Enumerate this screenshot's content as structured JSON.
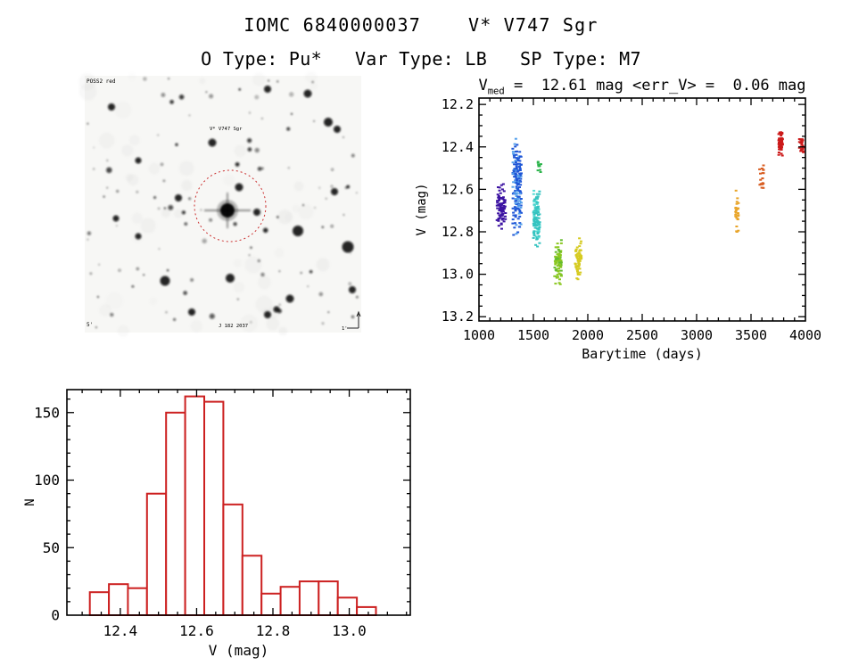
{
  "page": {
    "title": "IOMC 6840000037    V* V747 Sgr",
    "subtitle": "O Type: Pu*   Var Type: LB   SP Type: M7"
  },
  "finding_chart": {
    "label_top_left": "POSS2 red",
    "star_label": "V* V747 Sgr",
    "label_bottom_left": "5'",
    "label_bottom_center": "J 182 2037",
    "label_scale": "1'",
    "circle_color": "#cc3333",
    "star_label_color": "#b52222",
    "corner_text_color": "#2a2a55"
  },
  "chart_data": [
    {
      "type": "scatter",
      "name": "lightcurve",
      "title": {
        "var": "V",
        "sub": "med",
        "rest": " =  12.61 mag <err_V> =  0.06 mag"
      },
      "v_median_mag": 12.61,
      "err_v_mag": 0.06,
      "xlabel": "Barytime (days)",
      "ylabel": "V (mag)",
      "xlim": [
        1000,
        4000
      ],
      "ylim_top": 12.17,
      "ylim_bottom": 13.22,
      "xticks": [
        1000,
        1500,
        2000,
        2500,
        3000,
        3500,
        4000
      ],
      "xtick_labels": [
        "1000",
        "1500",
        "2000",
        "2500",
        "3000",
        "3500",
        "4000"
      ],
      "yticks": [
        12.2,
        12.4,
        12.6,
        12.8,
        13.0,
        13.2
      ],
      "ytick_labels": [
        "12.2",
        "12.4",
        "12.6",
        "12.8",
        "13.0",
        "13.2"
      ],
      "x_minor_step": 100,
      "y_minor_step": 0.05,
      "y_axis_inverted_brightness": true,
      "grid": false,
      "clusters": [
        {
          "name": "epoch-1",
          "x": [
            1165,
            1245
          ],
          "v": [
            12.55,
            12.81
          ],
          "n": 85,
          "color": "#3d14a2",
          "profile": "bell"
        },
        {
          "name": "epoch-2",
          "x": [
            1310,
            1390
          ],
          "v": [
            12.32,
            12.85
          ],
          "n": 175,
          "color": "#1f56d6",
          "color2": "#53a0ec",
          "color2_frac": 0.28,
          "profile": "bell"
        },
        {
          "name": "epoch-3",
          "x": [
            1500,
            1558
          ],
          "v": [
            12.55,
            12.91
          ],
          "n": 105,
          "color": "#35c3c0",
          "color2": "#56dcd4",
          "color2_frac": 0.25,
          "profile": "bell"
        },
        {
          "name": "epoch-3b",
          "x": [
            1540,
            1572
          ],
          "v": [
            12.47,
            12.52
          ],
          "n": 10,
          "color": "#2db44c",
          "profile": "uniform"
        },
        {
          "name": "epoch-4",
          "x": [
            1695,
            1760
          ],
          "v": [
            12.8,
            13.08
          ],
          "n": 80,
          "color": "#8cc822",
          "color2": "#63bb2e",
          "color2_frac": 0.25,
          "profile": "bell"
        },
        {
          "name": "epoch-5",
          "x": [
            1885,
            1940
          ],
          "v": [
            12.82,
            13.05
          ],
          "n": 65,
          "color": "#d6cb22",
          "profile": "bell"
        },
        {
          "name": "epoch-6",
          "x": [
            3358,
            3385
          ],
          "v": [
            12.6,
            12.8
          ],
          "n": 24,
          "color": "#e8a428",
          "profile": "uniform"
        },
        {
          "name": "epoch-7",
          "x": [
            3578,
            3615
          ],
          "v": [
            12.48,
            12.6
          ],
          "n": 20,
          "color": "#d85c20",
          "profile": "uniform"
        },
        {
          "name": "epoch-8",
          "x": [
            3755,
            3790
          ],
          "v": [
            12.31,
            12.46
          ],
          "n": 70,
          "color": "#cc1a1a",
          "profile": "bell"
        },
        {
          "name": "epoch-9",
          "x": [
            3945,
            3985
          ],
          "v": [
            12.36,
            12.43
          ],
          "n": 26,
          "color": "#cc1a1a",
          "profile": "uniform"
        }
      ]
    },
    {
      "type": "histogram",
      "name": "v-mag-distribution",
      "xlabel": "V (mag)",
      "ylabel": "N",
      "bar_color": "#cc2020",
      "bin_start": 12.32,
      "bin_width": 0.05,
      "counts": [
        17,
        23,
        20,
        90,
        150,
        162,
        158,
        82,
        44,
        16,
        21,
        25,
        25,
        13,
        6
      ],
      "xlim": [
        12.26,
        13.16
      ],
      "ylim": [
        0,
        167
      ],
      "xticks": [
        12.4,
        12.6,
        12.8,
        13.0
      ],
      "xtick_labels": [
        "12.4",
        "12.6",
        "12.8",
        "13.0"
      ],
      "yticks": [
        0,
        50,
        100,
        150
      ],
      "ytick_labels": [
        "0",
        "50",
        "100",
        "150"
      ],
      "x_minor_step": 0.05,
      "y_minor_step": 10,
      "grid": false
    }
  ]
}
